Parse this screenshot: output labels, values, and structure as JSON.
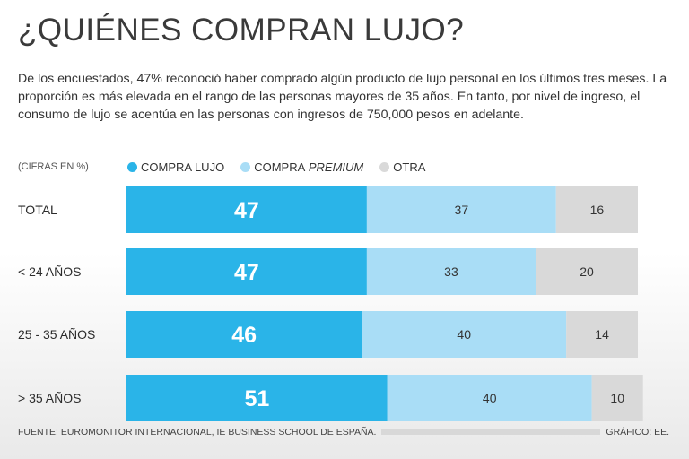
{
  "title": "¿QUIÉNES COMPRAN LUJO?",
  "intro": "De los encuestados, 47% reconoció haber comprado algún producto de lujo personal en los últimos tres meses. La proporción es más elevada en el rango de las personas mayores de 35 años. En tanto, por nivel de ingreso, el consumo de lujo se acentúa en las personas con ingresos de 750,000 pesos en adelante.",
  "legend": {
    "units": "(CIFRAS EN %)",
    "items": [
      {
        "label": "COMPRA LUJO",
        "color": "#2ab4e8"
      },
      {
        "label": "COMPRA",
        "label_em": "PREMIUM",
        "color": "#a9ddf6"
      },
      {
        "label": "OTRA",
        "color": "#d9d9d9"
      }
    ]
  },
  "footer": {
    "source": "FUENTE: EUROMONITOR INTERNACIONAL, IE BUSINESS SCHOOL DE ESPAÑA.",
    "credit": "GRÁFICO: EE."
  },
  "chart_data": {
    "type": "bar",
    "orientation": "horizontal",
    "stacked": true,
    "unit": "%",
    "categories": [
      "TOTAL",
      "< 24 AÑOS",
      "25 - 35 AÑOS",
      "> 35 AÑOS"
    ],
    "series": [
      {
        "name": "Compra lujo",
        "color": "#2ab4e8",
        "values": [
          47,
          47,
          46,
          51
        ]
      },
      {
        "name": "Compra premium",
        "color": "#a9ddf6",
        "values": [
          37,
          33,
          40,
          40
        ]
      },
      {
        "name": "Otra",
        "color": "#d9d9d9",
        "values": [
          16,
          20,
          14,
          10
        ]
      }
    ],
    "xlim": [
      0,
      100
    ]
  }
}
